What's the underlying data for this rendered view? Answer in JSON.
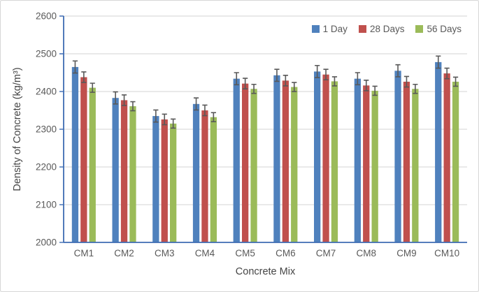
{
  "figure": {
    "background": "#ffffff",
    "border_color": "#d6d6d6"
  },
  "chart_data": {
    "type": "bar",
    "xlabel": "Concrete Mix",
    "ylabel": "Density of Concrete (kg/m³)",
    "categories": [
      "CM1",
      "CM2",
      "CM3",
      "CM4",
      "CM5",
      "CM6",
      "CM7",
      "CM8",
      "CM9",
      "CM10"
    ],
    "series": [
      {
        "name": "1 Day",
        "color": "#4F81BD",
        "values": [
          2465,
          2383,
          2335,
          2367,
          2434,
          2443,
          2453,
          2434,
          2455,
          2478
        ],
        "error": 16
      },
      {
        "name": "28 Days",
        "color": "#C0504D",
        "values": [
          2438,
          2377,
          2326,
          2350,
          2421,
          2429,
          2445,
          2416,
          2426,
          2448
        ],
        "error": 14
      },
      {
        "name": "56 Days",
        "color": "#9BBB59",
        "values": [
          2410,
          2361,
          2315,
          2332,
          2407,
          2412,
          2427,
          2402,
          2407,
          2426
        ],
        "error": 12
      }
    ],
    "ylim": [
      2000,
      2600
    ],
    "ytick_step": 100,
    "ytick_labels": [
      "2000",
      "2100",
      "2200",
      "2300",
      "2400",
      "2500",
      "2600"
    ],
    "grid": "horizontal",
    "legend_position": "top-right",
    "axis_color": "#3E6CB3",
    "gridline_color": "#DCDCDC",
    "errorbar_color": "#595959",
    "text_color": "#595959"
  }
}
